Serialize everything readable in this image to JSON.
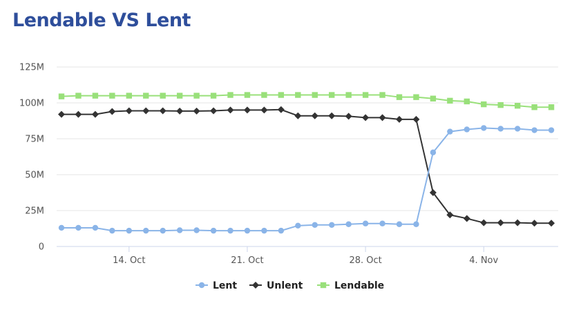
{
  "chart_data": {
    "type": "line",
    "title": "Lendable VS Lent",
    "xlabel": "",
    "ylabel": "",
    "ylim": [
      0,
      125
    ],
    "y_ticks": [
      "0",
      "25M",
      "50M",
      "75M",
      "100M",
      "125M"
    ],
    "x_ticks": [
      "14. Oct",
      "21. Oct",
      "28. Oct",
      "4. Nov"
    ],
    "x": [
      "10-10",
      "10-11",
      "10-12",
      "10-13",
      "10-14",
      "10-15",
      "10-16",
      "10-17",
      "10-18",
      "10-19",
      "10-20",
      "10-21",
      "10-22",
      "10-23",
      "10-24",
      "10-25",
      "10-26",
      "10-27",
      "10-28",
      "10-29",
      "10-30",
      "10-31",
      "11-01",
      "11-02",
      "11-03",
      "11-04",
      "11-05",
      "11-06",
      "11-07",
      "11-08"
    ],
    "grid": true,
    "legend": "bottom-center",
    "series": [
      {
        "name": "Lent",
        "color": "#8ab4e8",
        "marker": "circle",
        "values": [
          13,
          13,
          13,
          11,
          11,
          11,
          11,
          11.3,
          11.3,
          11,
          11,
          11,
          11,
          11,
          14.5,
          15,
          15,
          15.5,
          16,
          16,
          15.5,
          15.5,
          65.5,
          80,
          81.5,
          82.5,
          82,
          82,
          81,
          81
        ]
      },
      {
        "name": "Unlent",
        "color": "#333333",
        "marker": "diamond",
        "values": [
          92,
          92,
          92,
          94,
          94.5,
          94.5,
          94.5,
          94.3,
          94.3,
          94.5,
          95,
          95,
          95,
          95.3,
          91,
          91,
          91,
          90.7,
          89.7,
          89.7,
          88.5,
          88.5,
          37.5,
          22,
          19.5,
          16.5,
          16.5,
          16.5,
          16.2,
          16.2
        ]
      },
      {
        "name": "Lendable",
        "color": "#99e07a",
        "marker": "square",
        "values": [
          104.5,
          105,
          105,
          105,
          105,
          105,
          105,
          105,
          105,
          105,
          105.5,
          105.5,
          105.5,
          105.5,
          105.5,
          105.5,
          105.5,
          105.5,
          105.5,
          105.5,
          104,
          104,
          103,
          101.5,
          101,
          99,
          98.5,
          98,
          97,
          97
        ]
      }
    ]
  }
}
